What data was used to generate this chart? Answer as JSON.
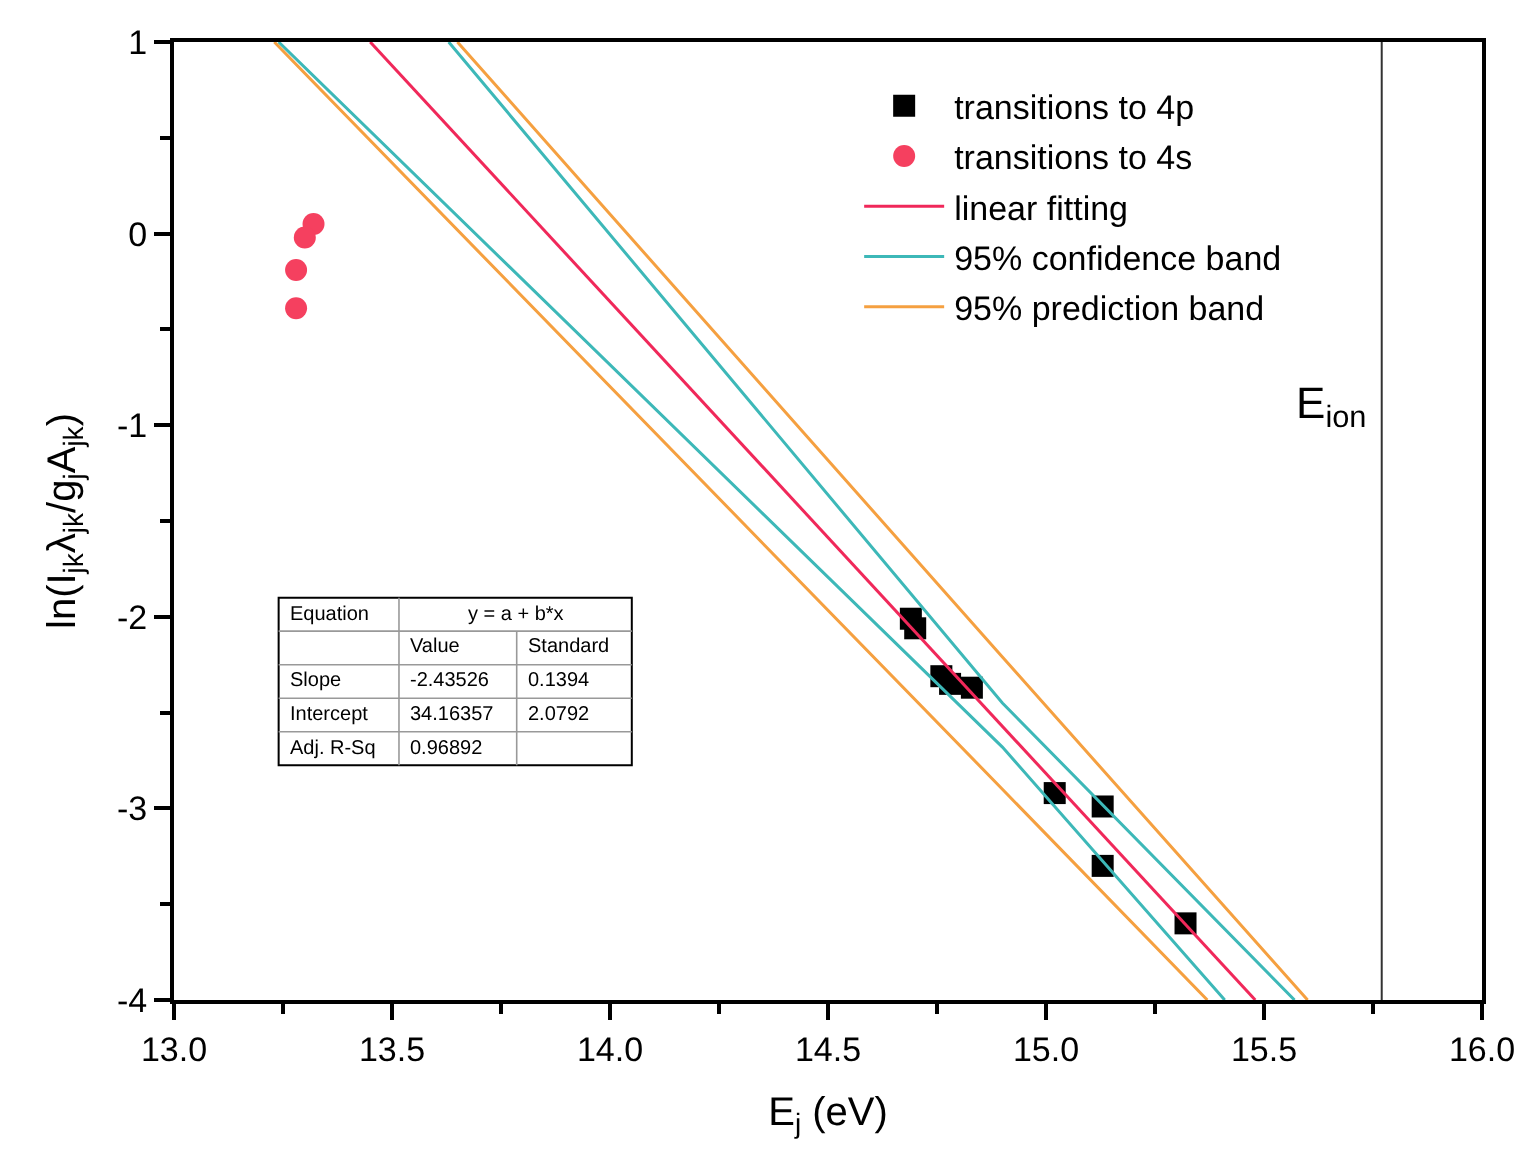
{
  "chart_data": {
    "type": "scatter",
    "xlabel": "E$_{j}$ (eV)",
    "ylabel": "ln(I$_{jk}$λ$_{jk}$/g$_{j}$A$_{jk}$)",
    "xlim": [
      13.0,
      16.0
    ],
    "xticks": [
      {
        "value": 13.0,
        "label": "13.0"
      },
      {
        "value": 13.5,
        "label": "13.5"
      },
      {
        "value": 14.0,
        "label": "14.0"
      },
      {
        "value": 14.5,
        "label": "14.5"
      },
      {
        "value": 15.0,
        "label": "15.0"
      },
      {
        "value": 15.5,
        "label": "15.5"
      },
      {
        "value": 16.0,
        "label": "16.0"
      }
    ],
    "ylim": [
      -4,
      1
    ],
    "yticks": [
      -4,
      -3,
      -2,
      -1,
      0,
      1
    ],
    "legend": "top right",
    "series": [
      {
        "name": "transitions to 4p",
        "marker": "square",
        "color": "#000000",
        "x": [
          14.69,
          14.7,
          14.76,
          14.78,
          14.83,
          15.02,
          15.13,
          15.13,
          15.32
        ],
        "values": [
          -2.01,
          -2.06,
          -2.31,
          -2.35,
          -2.37,
          -2.92,
          -2.99,
          -3.3,
          -3.6
        ]
      },
      {
        "name": "transitions to 4s",
        "marker": "circle",
        "color": "#f5405f",
        "x": [
          13.32,
          13.3,
          13.28,
          13.28
        ],
        "values": [
          0.05,
          -0.02,
          -0.19,
          -0.39
        ]
      },
      {
        "name": "linear fitting",
        "type": "line",
        "marker": "none",
        "color": "#f0285a",
        "x": [
          13.45,
          15.48
        ],
        "values": [
          1,
          -4
        ]
      },
      {
        "name": "95% confidence band",
        "type": "line",
        "marker": "none",
        "color": "#3db8b8",
        "x": [
          13.63,
          14.9,
          15.57
        ],
        "values": [
          1,
          -2.45,
          -4
        ]
      },
      {
        "type": "line",
        "marker": "none",
        "color": "#3db8b8",
        "x": [
          13.24,
          14.9,
          15.41
        ],
        "values": [
          1,
          -2.68,
          -4
        ]
      },
      {
        "name": "95% prediction band",
        "type": "line",
        "marker": "none",
        "color": "#f5a040",
        "x": [
          13.65,
          14.9,
          15.6
        ],
        "values": [
          1,
          -2.21,
          -4
        ]
      },
      {
        "type": "line",
        "marker": "none",
        "color": "#f5a040",
        "x": [
          13.23,
          14.9,
          15.37
        ],
        "values": [
          1,
          -2.9,
          -4
        ]
      }
    ],
    "ref_lines": [
      {
        "axis": "x",
        "value": 15.77,
        "label": "E$_{ion}$",
        "color": "#333333"
      }
    ],
    "annotations": [
      "Equation",
      "y = a + b*x",
      "Value",
      "Standard",
      "Slope",
      "-2.43526",
      "0.1394",
      "Intercept",
      "34.16357",
      "2.0792",
      "Adj. R-Sq",
      "0.96892"
    ]
  }
}
